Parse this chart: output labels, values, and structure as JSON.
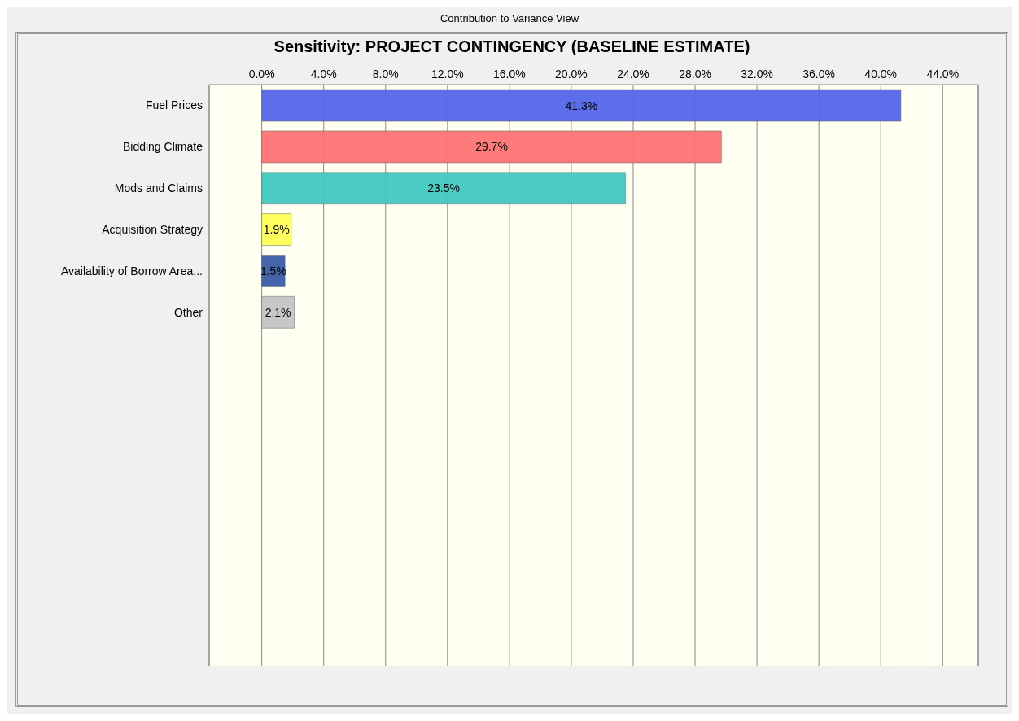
{
  "chart_data": {
    "type": "bar",
    "orientation": "horizontal",
    "title": "Sensitivity: PROJECT CONTINGENCY (BASELINE ESTIMATE)",
    "annotations": [
      "Contribution to Variance View"
    ],
    "categories": [
      "Fuel Prices",
      "Bidding Climate",
      "Mods and Claims",
      "Acquisition Strategy",
      "Availability of Borrow Area...",
      "Other"
    ],
    "values": [
      41.3,
      29.7,
      23.5,
      1.9,
      1.5,
      2.1
    ],
    "colors": [
      "#5366ea",
      "#ff7373",
      "#40c8c0",
      "#ffff55",
      "#3a5ca8",
      "#c4c4c4"
    ],
    "value_labels": [
      "41.3%",
      "29.7%",
      "23.5%",
      "1.9%",
      "1.5%",
      "2.1%"
    ],
    "xlim": [
      -3.4,
      46.3
    ],
    "xticks": [
      {
        "value": 0,
        "label": "0.0%"
      },
      {
        "value": 4,
        "label": "4.0%"
      },
      {
        "value": 8,
        "label": "8.0%"
      },
      {
        "value": 12,
        "label": "12.0%"
      },
      {
        "value": 16,
        "label": "16.0%"
      },
      {
        "value": 20,
        "label": "20.0%"
      },
      {
        "value": 24,
        "label": "24.0%"
      },
      {
        "value": 28,
        "label": "28.0%"
      },
      {
        "value": 32,
        "label": "32.0%"
      },
      {
        "value": 36,
        "label": "36.0%"
      },
      {
        "value": 40,
        "label": "40.0%"
      },
      {
        "value": 44,
        "label": "44.0%"
      }
    ],
    "grid": "x"
  }
}
